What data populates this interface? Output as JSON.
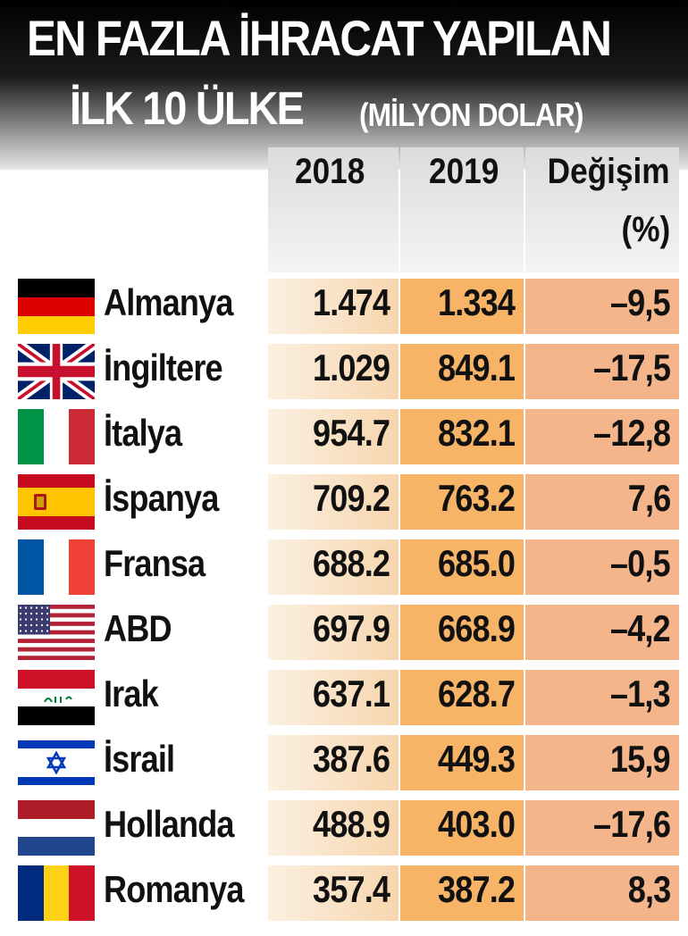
{
  "title": {
    "line1": "EN FAZLA İHRACAT YAPILAN",
    "line2": "İLK 10 ÜLKE",
    "unit": "(MİLYON DOLAR)"
  },
  "columns": {
    "y2018": "2018",
    "y2019": "2019",
    "change": "Değişim",
    "change_unit": "(%)"
  },
  "colors": {
    "col2018_light": "#fbf0e2",
    "col2018_dark": "#f7d6ad",
    "col2019": "#f7b466",
    "change": "#f5b58b"
  },
  "chart_data": {
    "type": "table",
    "title": "EN FAZLA İHRACAT YAPILAN İLK 10 ÜLKE",
    "subtitle": "(MİLYON DOLAR)",
    "headers": [
      "",
      "2018",
      "2019",
      "Değişim (%)"
    ],
    "rows": [
      {
        "country": "Almanya",
        "flag": "germany-flag",
        "v2018": "1.474",
        "v2019": "1.334",
        "change": "–9,5"
      },
      {
        "country": "İngiltere",
        "flag": "uk-flag",
        "v2018": "1.029",
        "v2019": "849.1",
        "change": "–17,5"
      },
      {
        "country": "İtalya",
        "flag": "italy-flag",
        "v2018": "954.7",
        "v2019": "832.1",
        "change": "–12,8"
      },
      {
        "country": "İspanya",
        "flag": "spain-flag",
        "v2018": "709.2",
        "v2019": "763.2",
        "change": "7,6"
      },
      {
        "country": "Fransa",
        "flag": "france-flag",
        "v2018": "688.2",
        "v2019": "685.0",
        "change": "–0,5"
      },
      {
        "country": "ABD",
        "flag": "usa-flag",
        "v2018": "697.9",
        "v2019": "668.9",
        "change": "–4,2"
      },
      {
        "country": "Irak",
        "flag": "iraq-flag",
        "v2018": "637.1",
        "v2019": "628.7",
        "change": "–1,3"
      },
      {
        "country": "İsrail",
        "flag": "israel-flag",
        "v2018": "387.6",
        "v2019": "449.3",
        "change": "15,9"
      },
      {
        "country": "Hollanda",
        "flag": "netherlands-flag",
        "v2018": "488.9",
        "v2019": "403.0",
        "change": "–17,6"
      },
      {
        "country": "Romanya",
        "flag": "romania-flag",
        "v2018": "357.4",
        "v2019": "387.2",
        "change": "8,3"
      }
    ]
  }
}
